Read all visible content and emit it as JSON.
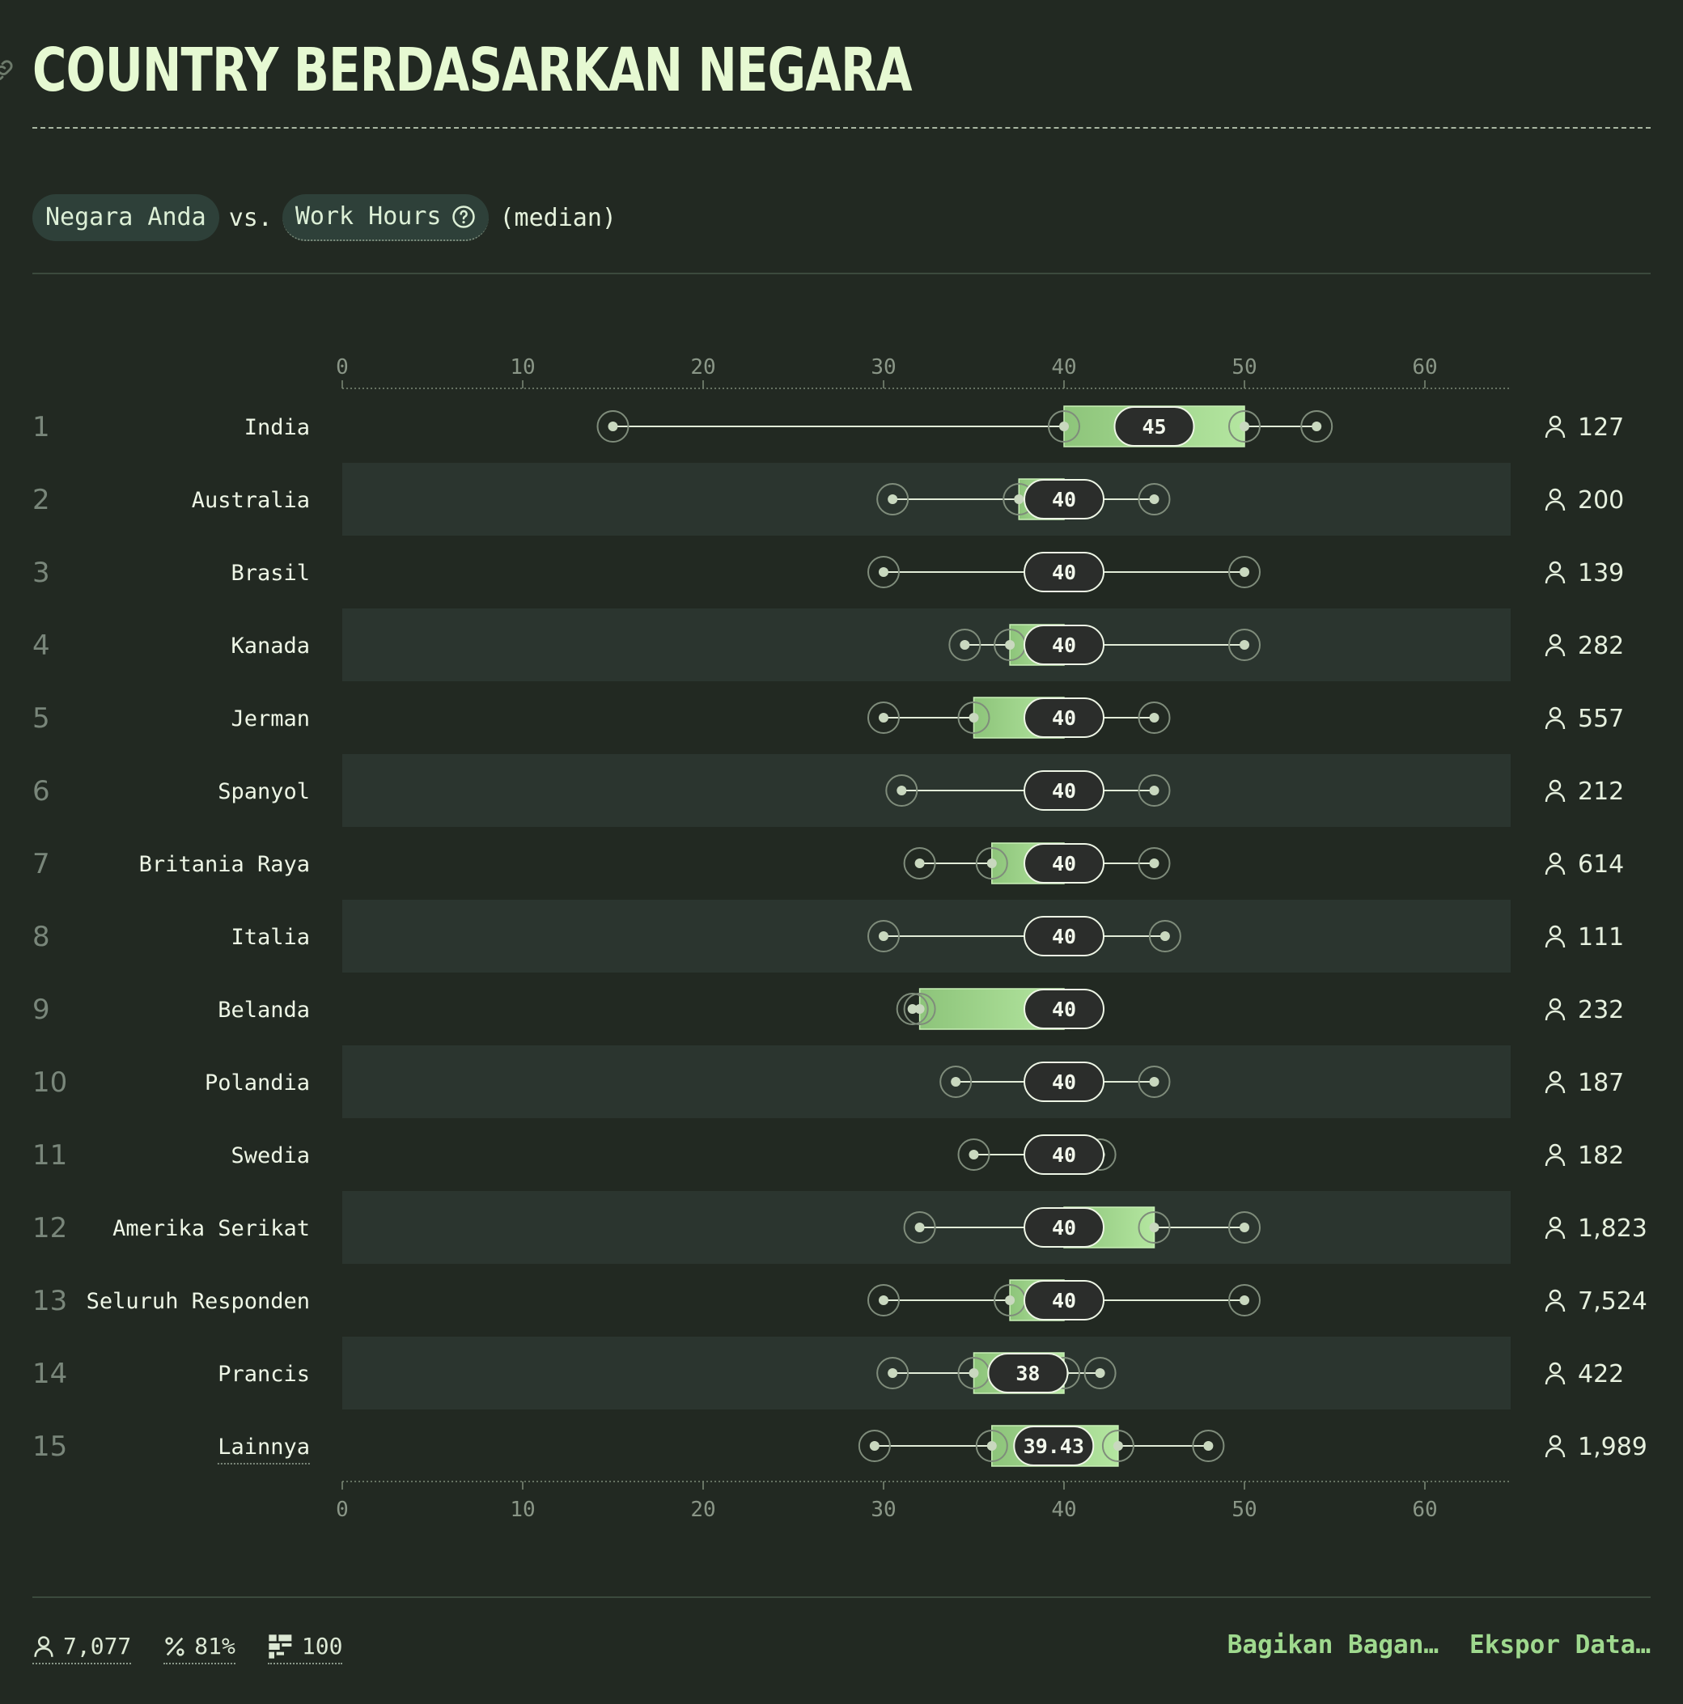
{
  "header": {
    "title": "COUNTRY BERDASARKAN NEGARA"
  },
  "controls": {
    "dimension": "Negara Anda",
    "vs": "vs.",
    "metric": "Work Hours",
    "aggregate": "(median)"
  },
  "footer": {
    "respondents": "7,077",
    "percent": "81%",
    "count": "100",
    "share_label": "Bagikan Bagan…",
    "export_label": "Ekspor Data…"
  },
  "colors": {
    "background": "#222922",
    "band": "#2b352f",
    "box_light": "#b4e6a0",
    "box_dark": "#8dc47a",
    "label": "#2b2d2b",
    "accent": "#9fd98e"
  },
  "icons": [
    "link-icon",
    "help-icon",
    "person-icon",
    "percent-icon",
    "grid-icon"
  ],
  "chart_data": {
    "type": "boxplot",
    "x_ticks": [
      0,
      10,
      20,
      30,
      40,
      50,
      60
    ],
    "xlim": [
      0,
      65
    ],
    "grid": false,
    "rows": [
      {
        "rank": "1",
        "label": "India",
        "min": 15,
        "q1": 40,
        "median": 45,
        "q3": 50,
        "max": 54,
        "median_label": "45",
        "count": "127"
      },
      {
        "rank": "2",
        "label": "Australia",
        "min": 30.5,
        "q1": 37.5,
        "median": 40,
        "q3": 40,
        "max": 45,
        "median_label": "40",
        "count": "200"
      },
      {
        "rank": "3",
        "label": "Brasil",
        "min": 30,
        "q1": 40,
        "median": 40,
        "q3": 40,
        "max": 50,
        "median_label": "40",
        "count": "139"
      },
      {
        "rank": "4",
        "label": "Kanada",
        "min": 34.5,
        "q1": 37,
        "median": 40,
        "q3": 40,
        "max": 50,
        "median_label": "40",
        "count": "282"
      },
      {
        "rank": "5",
        "label": "Jerman",
        "min": 30,
        "q1": 35,
        "median": 40,
        "q3": 40,
        "max": 45,
        "median_label": "40",
        "count": "557"
      },
      {
        "rank": "6",
        "label": "Spanyol",
        "min": 31,
        "q1": 40,
        "median": 40,
        "q3": 40,
        "max": 45,
        "median_label": "40",
        "count": "212"
      },
      {
        "rank": "7",
        "label": "Britania Raya",
        "min": 32,
        "q1": 36,
        "median": 40,
        "q3": 40,
        "max": 45,
        "median_label": "40",
        "count": "614"
      },
      {
        "rank": "8",
        "label": "Italia",
        "min": 30,
        "q1": 40,
        "median": 40,
        "q3": 40,
        "max": 45.6,
        "median_label": "40",
        "count": "111"
      },
      {
        "rank": "9",
        "label": "Belanda",
        "min": 31.6,
        "q1": 32,
        "median": 40,
        "q3": 40,
        "max": 40,
        "median_label": "40",
        "count": "232"
      },
      {
        "rank": "10",
        "label": "Polandia",
        "min": 34,
        "q1": 40,
        "median": 40,
        "q3": 40,
        "max": 45,
        "median_label": "40",
        "count": "187"
      },
      {
        "rank": "11",
        "label": "Swedia",
        "min": 35,
        "q1": 40,
        "median": 40,
        "q3": 40,
        "max": 42,
        "median_label": "40",
        "count": "182"
      },
      {
        "rank": "12",
        "label": "Amerika Serikat",
        "min": 32,
        "q1": 40,
        "median": 40,
        "q3": 45,
        "max": 50,
        "median_label": "40",
        "count": "1,823"
      },
      {
        "rank": "13",
        "label": "Seluruh Responden",
        "min": 30,
        "q1": 37,
        "median": 40,
        "q3": 40,
        "max": 50,
        "median_label": "40",
        "count": "7,524"
      },
      {
        "rank": "14",
        "label": "Prancis",
        "min": 30.5,
        "q1": 35,
        "median": 38,
        "q3": 40,
        "max": 42,
        "median_label": "38",
        "count": "422"
      },
      {
        "rank": "15",
        "label": "Lainnya",
        "min": 29.5,
        "q1": 36,
        "median": 39.43,
        "q3": 43,
        "max": 48,
        "median_label": "39.43",
        "count": "1,989"
      }
    ]
  }
}
